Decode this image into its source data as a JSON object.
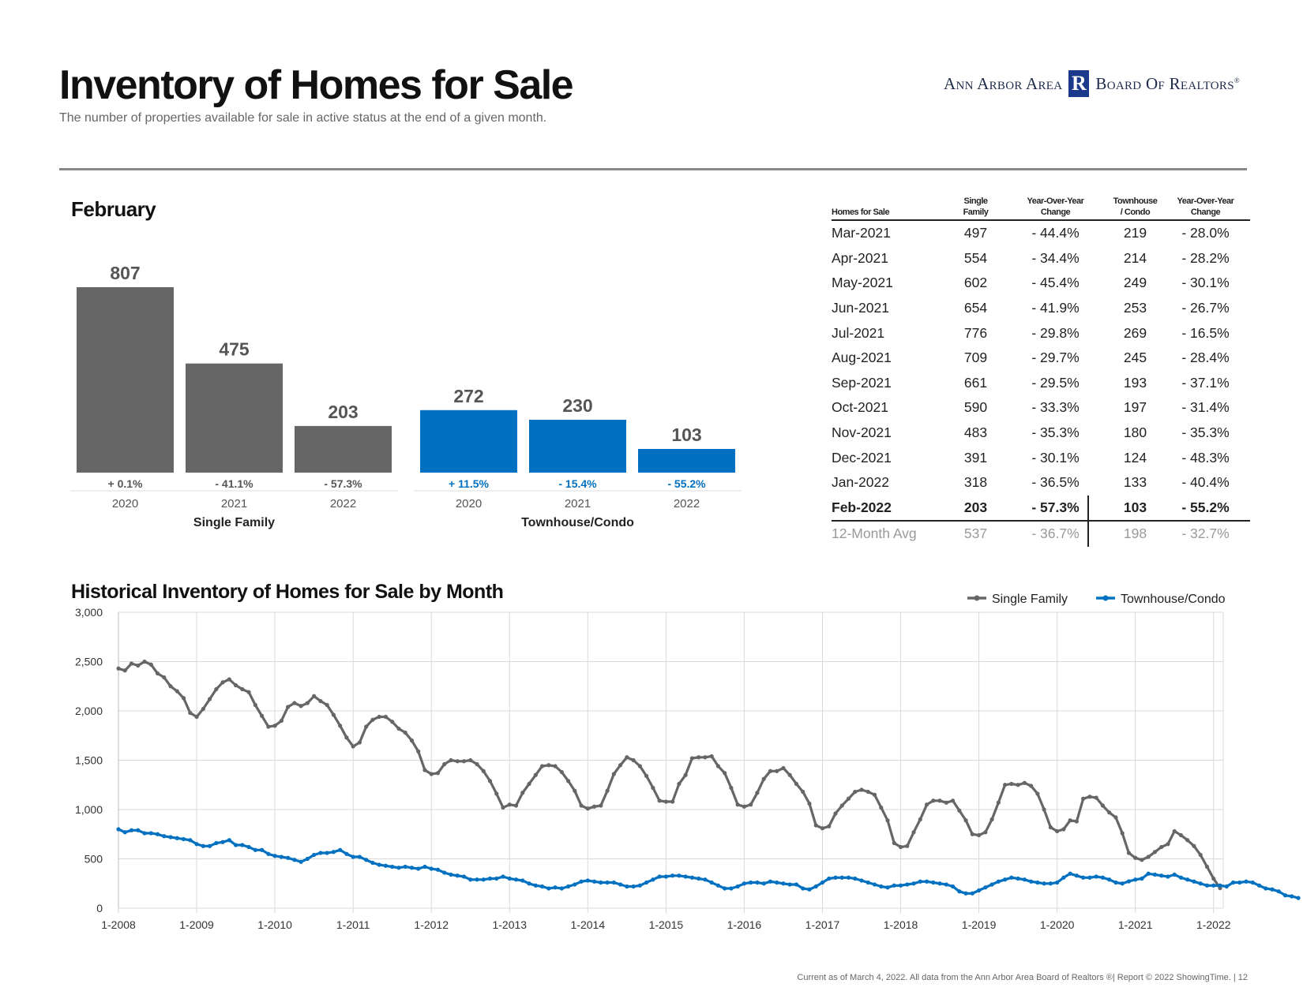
{
  "header": {
    "title": "Inventory of Homes for Sale",
    "subtitle": "The number of properties available for sale in active status at the end of a given month.",
    "logo_left": "Ann Arbor Area",
    "logo_mark": "R",
    "logo_right": "Board Of Realtors",
    "logo_reg": "®"
  },
  "month_label": "February",
  "hist_title": "Historical Inventory of Homes for Sale by Month",
  "footer": "Current as of March 4, 2022. All data from the Ann Arbor Area Board of Realtors ®| Report © 2022 ShowingTime.  |  12",
  "colors": {
    "single": "#666666",
    "condo": "#0070c0",
    "condo_text": "#0070c0"
  },
  "chart_data": [
    {
      "type": "bar",
      "title": "February",
      "groups": [
        {
          "name": "Single Family",
          "categories": [
            "2020",
            "2021",
            "2022"
          ],
          "values": [
            807,
            475,
            203
          ],
          "changes": [
            "+ 0.1%",
            "- 41.1%",
            "- 57.3%"
          ]
        },
        {
          "name": "Townhouse/Condo",
          "categories": [
            "2020",
            "2021",
            "2022"
          ],
          "values": [
            272,
            230,
            103
          ],
          "changes": [
            "+ 11.5%",
            "- 15.4%",
            "- 55.2%"
          ]
        }
      ]
    },
    {
      "type": "line",
      "title": "Historical Inventory of Homes for Sale by Month",
      "x_start": "1-2008",
      "x_ticks": [
        "1-2008",
        "1-2009",
        "1-2010",
        "1-2011",
        "1-2012",
        "1-2013",
        "1-2014",
        "1-2015",
        "1-2016",
        "1-2017",
        "1-2018",
        "1-2019",
        "1-2020",
        "1-2021",
        "1-2022"
      ],
      "y_ticks": [
        "0",
        "500",
        "1,000",
        "1,500",
        "2,000",
        "2,500",
        "3,000"
      ],
      "ylim": [
        0,
        3000
      ],
      "grid": true,
      "legend": "top-right",
      "series": [
        {
          "name": "Single Family",
          "values": [
            2430,
            2410,
            2480,
            2460,
            2500,
            2470,
            2380,
            2340,
            2250,
            2200,
            2130,
            1980,
            1940,
            2020,
            2120,
            2220,
            2290,
            2320,
            2260,
            2220,
            2190,
            2060,
            1950,
            1840,
            1850,
            1900,
            2040,
            2080,
            2050,
            2080,
            2150,
            2100,
            2060,
            1960,
            1850,
            1730,
            1640,
            1680,
            1840,
            1910,
            1940,
            1940,
            1890,
            1820,
            1780,
            1700,
            1590,
            1400,
            1360,
            1370,
            1460,
            1500,
            1490,
            1490,
            1500,
            1460,
            1390,
            1290,
            1160,
            1020,
            1050,
            1040,
            1170,
            1260,
            1350,
            1440,
            1450,
            1440,
            1380,
            1290,
            1190,
            1040,
            1010,
            1030,
            1040,
            1190,
            1360,
            1450,
            1530,
            1500,
            1440,
            1340,
            1220,
            1090,
            1080,
            1080,
            1260,
            1350,
            1520,
            1530,
            1530,
            1540,
            1440,
            1370,
            1220,
            1050,
            1030,
            1050,
            1170,
            1310,
            1390,
            1390,
            1420,
            1350,
            1260,
            1180,
            1060,
            840,
            810,
            830,
            960,
            1040,
            1110,
            1180,
            1200,
            1180,
            1150,
            1020,
            890,
            660,
            620,
            630,
            770,
            900,
            1050,
            1090,
            1090,
            1070,
            1090,
            990,
            890,
            750,
            740,
            770,
            900,
            1070,
            1250,
            1260,
            1250,
            1270,
            1240,
            1160,
            1000,
            820,
            780,
            800,
            890,
            880,
            1110,
            1130,
            1120,
            1040,
            970,
            920,
            760,
            560,
            510,
            490,
            520,
            570,
            620,
            650,
            780,
            740,
            690,
            630,
            540,
            420,
            300,
            203
          ]
        },
        {
          "name": "Townhouse/Condo",
          "values": [
            800,
            770,
            790,
            790,
            760,
            760,
            750,
            730,
            720,
            710,
            700,
            690,
            650,
            630,
            630,
            660,
            670,
            690,
            640,
            640,
            620,
            590,
            590,
            550,
            530,
            520,
            510,
            490,
            470,
            500,
            540,
            560,
            560,
            570,
            590,
            550,
            520,
            520,
            490,
            460,
            440,
            430,
            420,
            410,
            420,
            410,
            400,
            420,
            400,
            390,
            360,
            340,
            330,
            320,
            290,
            290,
            290,
            300,
            300,
            320,
            300,
            290,
            280,
            250,
            230,
            220,
            200,
            210,
            200,
            220,
            240,
            270,
            280,
            270,
            260,
            260,
            260,
            240,
            220,
            220,
            230,
            260,
            290,
            320,
            320,
            330,
            330,
            320,
            310,
            300,
            290,
            260,
            230,
            200,
            200,
            220,
            250,
            260,
            260,
            250,
            270,
            260,
            250,
            240,
            240,
            200,
            190,
            220,
            260,
            300,
            310,
            310,
            310,
            300,
            280,
            260,
            240,
            220,
            210,
            230,
            230,
            240,
            250,
            270,
            270,
            260,
            250,
            240,
            220,
            170,
            150,
            150,
            180,
            210,
            240,
            270,
            290,
            310,
            300,
            290,
            270,
            260,
            250,
            250,
            260,
            310,
            350,
            330,
            310,
            310,
            320,
            310,
            290,
            260,
            250,
            272,
            290,
            300,
            350,
            340,
            330,
            320,
            340,
            310,
            290,
            270,
            250,
            230,
            230,
            230,
            220,
            260,
            260,
            270,
            260,
            230,
            200,
            190,
            170,
            130,
            120,
            103
          ]
        }
      ]
    }
  ],
  "table": {
    "headers": [
      "Homes for Sale",
      "Single\nFamily",
      "Year-Over-Year\nChange",
      "Townhouse\n/ Condo",
      "Year-Over-Year\nChange"
    ],
    "rows": [
      [
        "Mar-2021",
        "497",
        "- 44.4%",
        "219",
        "- 28.0%"
      ],
      [
        "Apr-2021",
        "554",
        "- 34.4%",
        "214",
        "- 28.2%"
      ],
      [
        "May-2021",
        "602",
        "- 45.4%",
        "249",
        "- 30.1%"
      ],
      [
        "Jun-2021",
        "654",
        "- 41.9%",
        "253",
        "- 26.7%"
      ],
      [
        "Jul-2021",
        "776",
        "- 29.8%",
        "269",
        "- 16.5%"
      ],
      [
        "Aug-2021",
        "709",
        "- 29.7%",
        "245",
        "- 28.4%"
      ],
      [
        "Sep-2021",
        "661",
        "- 29.5%",
        "193",
        "- 37.1%"
      ],
      [
        "Oct-2021",
        "590",
        "- 33.3%",
        "197",
        "- 31.4%"
      ],
      [
        "Nov-2021",
        "483",
        "- 35.3%",
        "180",
        "- 35.3%"
      ],
      [
        "Dec-2021",
        "391",
        "- 30.1%",
        "124",
        "- 48.3%"
      ],
      [
        "Jan-2022",
        "318",
        "- 36.5%",
        "133",
        "- 40.4%"
      ],
      [
        "Feb-2022",
        "203",
        "- 57.3%",
        "103",
        "- 55.2%"
      ]
    ],
    "avg": [
      "12-Month Avg",
      "537",
      "- 36.7%",
      "198",
      "- 32.7%"
    ]
  }
}
